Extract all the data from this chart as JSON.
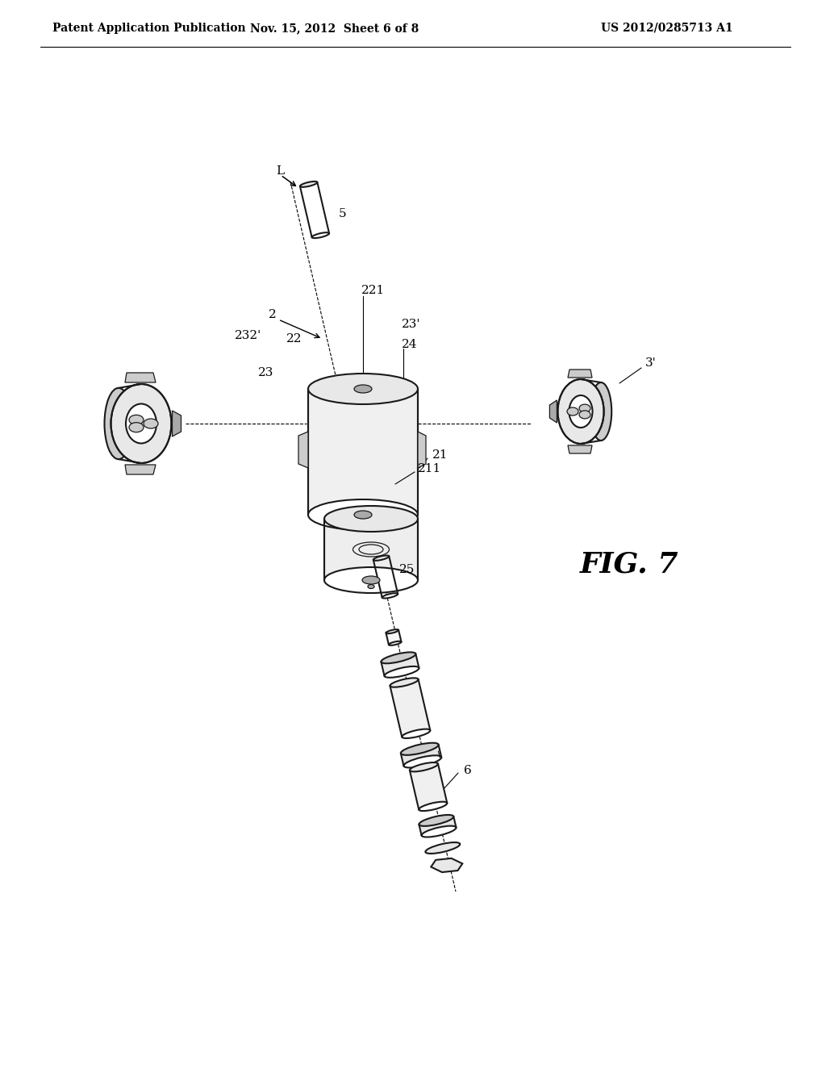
{
  "bg_color": "#ffffff",
  "line_color": "#1a1a1a",
  "header_left": "Patent Application Publication",
  "header_center": "Nov. 15, 2012  Sheet 6 of 8",
  "header_right": "US 2012/0285713 A1",
  "fig_label": "FIG. 7",
  "header_fontsize": 10,
  "fig_fontsize": 26,
  "label_fontsize": 11,
  "gray_light": "#e8e8e8",
  "gray_mid": "#cccccc",
  "gray_dark": "#aaaaaa",
  "white": "#ffffff"
}
